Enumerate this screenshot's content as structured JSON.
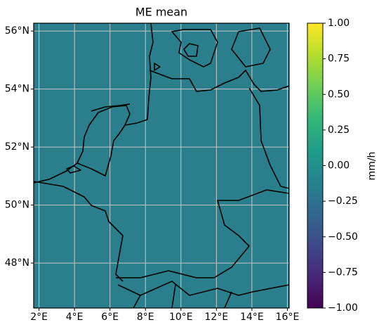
{
  "chart_data": {
    "type": "map",
    "title": "ME mean",
    "xlim": [
      1.7,
      16.1
    ],
    "ylim": [
      46.45,
      56.27
    ],
    "xticks": [
      {
        "value": 2,
        "label": "2°E"
      },
      {
        "value": 4,
        "label": "4°E"
      },
      {
        "value": 6,
        "label": "6°E"
      },
      {
        "value": 8,
        "label": "8°E"
      },
      {
        "value": 10,
        "label": "10°E"
      },
      {
        "value": 12,
        "label": "12°E"
      },
      {
        "value": 14,
        "label": "14°E"
      },
      {
        "value": 16,
        "label": "16°E"
      }
    ],
    "yticks": [
      {
        "value": 48,
        "label": "48°N"
      },
      {
        "value": 50,
        "label": "50°N"
      },
      {
        "value": 52,
        "label": "52°N"
      },
      {
        "value": 54,
        "label": "54°N"
      },
      {
        "value": 56,
        "label": "56°N"
      }
    ],
    "grid": true,
    "field_color": "#2b7f8c",
    "colorbar": {
      "label": "mm/h",
      "lim": [
        -1,
        1
      ],
      "ticks": [
        {
          "value": -1,
          "label": "−1.00"
        },
        {
          "value": -0.75,
          "label": "−0.75"
        },
        {
          "value": -0.5,
          "label": "−0.50"
        },
        {
          "value": -0.25,
          "label": "−0.25"
        },
        {
          "value": 0,
          "label": "0.00"
        },
        {
          "value": 0.25,
          "label": "0.25"
        },
        {
          "value": 0.5,
          "label": "0.50"
        },
        {
          "value": 0.75,
          "label": "0.75"
        },
        {
          "value": 1,
          "label": "1.00"
        }
      ],
      "colors": [
        "#440154",
        "#482878",
        "#3e4989",
        "#31688e",
        "#26828e",
        "#1f9e89",
        "#35b779",
        "#6ece58",
        "#b5de2b",
        "#fde725"
      ]
    }
  }
}
